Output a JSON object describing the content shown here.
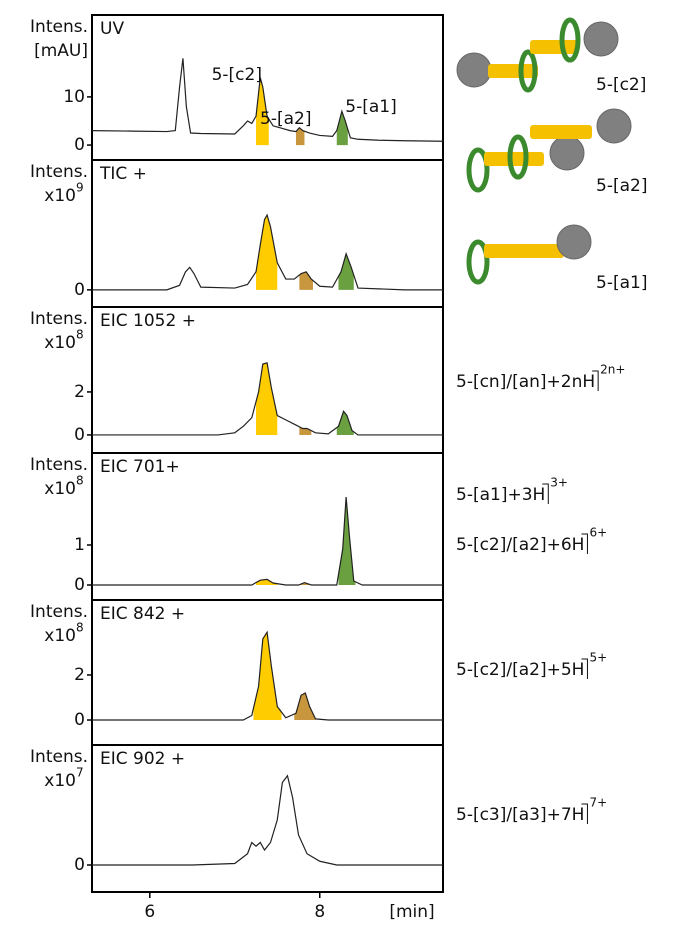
{
  "chart_data": {
    "type": "line",
    "xlim": [
      5.32,
      9.45
    ],
    "xticks": [
      6,
      8
    ],
    "xlabel": "[min]",
    "line_color": "#222222",
    "panels": [
      {
        "title": "UV",
        "ylabel": "Intens.",
        "yunit": "[mAU]",
        "ylim": [
          -3.1,
          27
        ],
        "yticks": [
          0,
          10
        ],
        "x": [
          5.32,
          5.8,
          6.2,
          6.3,
          6.35,
          6.39,
          6.43,
          6.48,
          6.6,
          7.0,
          7.1,
          7.15,
          7.2,
          7.25,
          7.3,
          7.33,
          7.38,
          7.45,
          7.55,
          7.65,
          7.72,
          7.76,
          7.8,
          7.88,
          8.0,
          8.15,
          8.2,
          8.26,
          8.3,
          8.36,
          8.45,
          8.7,
          9.0,
          9.45
        ],
        "y": [
          3,
          2.9,
          2.8,
          3,
          12,
          18,
          8,
          2.5,
          2.4,
          2.3,
          4,
          5,
          4.5,
          6,
          14,
          12,
          6,
          4,
          3.5,
          3,
          2.8,
          3.6,
          3,
          2.5,
          2,
          1.8,
          3,
          7,
          5,
          1.5,
          1.2,
          1,
          0.9,
          0.8
        ],
        "fills": [
          {
            "color": "#ffcc00",
            "x": [
              7.25,
              7.4
            ]
          },
          {
            "color": "#c8963c",
            "x": [
              7.72,
              7.82
            ]
          },
          {
            "color": "#6aa040",
            "x": [
              8.2,
              8.33
            ]
          }
        ],
        "annotations": [
          "5-[c2]",
          "5-[a2]",
          "5-[a1]"
        ]
      },
      {
        "title": "TIC +",
        "ylabel": "Intens.",
        "yunit": "x10",
        "yunit_exp": "9",
        "ylim": [
          -0.19,
          1.44
        ],
        "yticks": [
          0
        ],
        "x": [
          5.32,
          6.2,
          6.35,
          6.42,
          6.47,
          6.52,
          6.6,
          7.0,
          7.15,
          7.25,
          7.3,
          7.35,
          7.38,
          7.42,
          7.5,
          7.6,
          7.7,
          7.78,
          7.84,
          7.9,
          8.0,
          8.15,
          8.25,
          8.31,
          8.37,
          8.45,
          9.0,
          9.45
        ],
        "y": [
          0,
          0,
          0.05,
          0.2,
          0.25,
          0.18,
          0.03,
          0.02,
          0.06,
          0.2,
          0.5,
          0.78,
          0.83,
          0.7,
          0.3,
          0.12,
          0.12,
          0.18,
          0.2,
          0.12,
          0.04,
          0.03,
          0.2,
          0.4,
          0.25,
          0.02,
          0,
          0
        ],
        "fills": [
          {
            "color": "#ffcc00",
            "x": [
              7.25,
              7.5
            ]
          },
          {
            "color": "#c8963c",
            "x": [
              7.76,
              7.92
            ]
          },
          {
            "color": "#6aa040",
            "x": [
              8.22,
              8.4
            ]
          }
        ]
      },
      {
        "title": "EIC 1052 +",
        "ylabel": "Intens.",
        "yunit": "x10",
        "yunit_exp": "8",
        "ylim": [
          -0.84,
          5.95
        ],
        "yticks": [
          0,
          2
        ],
        "x": [
          5.32,
          6.8,
          7.0,
          7.1,
          7.2,
          7.28,
          7.33,
          7.38,
          7.43,
          7.5,
          7.6,
          7.7,
          7.8,
          7.85,
          7.95,
          8.1,
          8.22,
          8.28,
          8.32,
          8.38,
          8.45,
          9.45
        ],
        "y": [
          0,
          0,
          0.1,
          0.4,
          0.8,
          2.0,
          3.3,
          3.35,
          2.2,
          0.9,
          0.7,
          0.5,
          0.3,
          0.3,
          0.1,
          0.05,
          0.4,
          1.1,
          0.9,
          0.2,
          0,
          0
        ],
        "fills": [
          {
            "color": "#ffcc00",
            "x": [
              7.25,
              7.5
            ]
          },
          {
            "color": "#c8963c",
            "x": [
              7.76,
              7.9
            ]
          },
          {
            "color": "#6aa040",
            "x": [
              8.2,
              8.4
            ]
          }
        ],
        "notes": [
          {
            "text": "5-[cn]/[an]+2nH",
            "sup": "2n+"
          }
        ]
      },
      {
        "title": "EIC 701+",
        "ylabel": "Intens.",
        "yunit": "x10",
        "yunit_exp": "8",
        "ylim": [
          -0.375,
          3.3
        ],
        "yticks": [
          0,
          1
        ],
        "x": [
          5.32,
          7.2,
          7.3,
          7.38,
          7.45,
          7.6,
          7.75,
          7.82,
          7.9,
          8.2,
          8.27,
          8.31,
          8.35,
          8.4,
          8.5,
          9.45
        ],
        "y": [
          0,
          0,
          0.12,
          0.14,
          0.05,
          0,
          0,
          0.06,
          0,
          0,
          0.9,
          2.2,
          1.2,
          0.1,
          0,
          0
        ],
        "fills": [
          {
            "color": "#ffcc00",
            "x": [
              7.25,
              7.5
            ]
          },
          {
            "color": "#c8963c",
            "x": [
              7.74,
              7.9
            ]
          },
          {
            "color": "#6aa040",
            "x": [
              8.22,
              8.42
            ]
          }
        ],
        "notes": [
          {
            "text": "5-[a1]+3H",
            "sup": "3+"
          },
          {
            "text": "5-[c2]/[a2]+6H",
            "sup": "6+"
          }
        ]
      },
      {
        "title": "EIC 842 +",
        "ylabel": "Intens.",
        "yunit": "x10",
        "yunit_exp": "8",
        "ylim": [
          -1.11,
          5.33
        ],
        "yticks": [
          0,
          2
        ],
        "x": [
          5.32,
          7.1,
          7.2,
          7.28,
          7.33,
          7.38,
          7.43,
          7.5,
          7.6,
          7.72,
          7.78,
          7.83,
          7.88,
          7.95,
          8.1,
          9.45
        ],
        "y": [
          0,
          0,
          0.2,
          1.5,
          3.6,
          3.9,
          2.4,
          0.6,
          0.1,
          0.3,
          1.1,
          1.2,
          0.6,
          0.05,
          0,
          0
        ],
        "fills": [
          {
            "color": "#ffcc00",
            "x": [
              7.22,
              7.55
            ]
          },
          {
            "color": "#c8963c",
            "x": [
              7.7,
              7.95
            ]
          }
        ],
        "notes": [
          {
            "text": "5-[c2]/[a2]+5H",
            "sup": "5+"
          }
        ]
      },
      {
        "title": "EIC 902 +",
        "ylabel": "Intens.",
        "yunit": "x10",
        "yunit_exp": "7",
        "ylim": [
          -0.36,
          1.6
        ],
        "yticks": [
          0
        ],
        "x": [
          5.32,
          6.5,
          7.0,
          7.15,
          7.2,
          7.25,
          7.3,
          7.35,
          7.42,
          7.5,
          7.56,
          7.62,
          7.68,
          7.75,
          7.85,
          8.0,
          8.2,
          9.45
        ],
        "y": [
          0,
          0,
          0.02,
          0.15,
          0.3,
          0.25,
          0.3,
          0.2,
          0.3,
          0.6,
          1.1,
          1.19,
          0.9,
          0.4,
          0.15,
          0.05,
          0,
          0
        ],
        "fills": [],
        "notes": [
          {
            "text": "5-[c3]/[a3]+7H",
            "sup": "7+"
          }
        ]
      }
    ]
  },
  "molecules": [
    {
      "label": "5-[c2]"
    },
    {
      "label": "5-[a2]"
    },
    {
      "label": "5-[a1]"
    }
  ]
}
